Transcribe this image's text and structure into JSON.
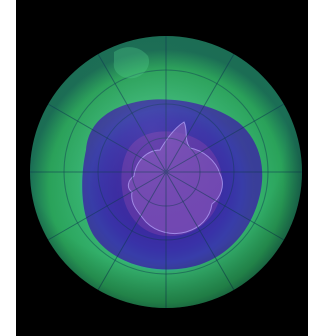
{
  "image": {
    "subject": "",
    "colors": {
      "background": "#000000",
      "globe_edge": "#1b7a60",
      "ozone_high": "#3fbf6a",
      "ozone_mid": "#2e8fd8",
      "ozone_low": "#4b2fa0",
      "ozone_min": "#7a3fb0",
      "continent_outline": "#b9a6ff",
      "graticule": "#0e3a52"
    }
  }
}
